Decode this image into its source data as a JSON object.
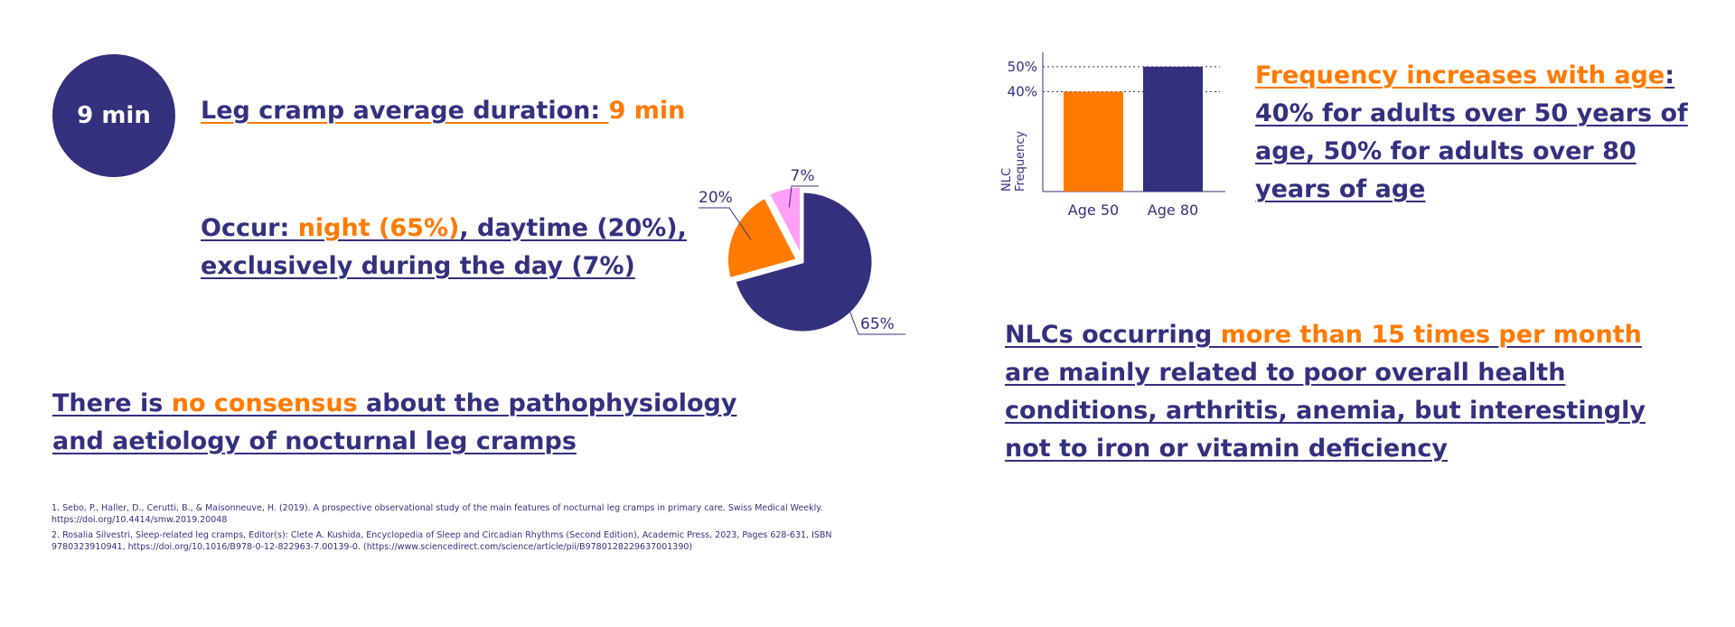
{
  "badge": {
    "text": "9 min"
  },
  "duration": {
    "label": "Leg cramp average duration: ",
    "value": "9 min"
  },
  "occurrence": {
    "prefix": "Occur: ",
    "night": "night (65%)",
    "rest": ", daytime (20%), exclusively during the day (7%)"
  },
  "consensus": {
    "part1": "There is ",
    "highlight": "no consensus",
    "part2": " about the pathophysiology and aetiology of nocturnal leg cramps"
  },
  "frequency": {
    "highlight": "Frequency increases with age",
    "rest": ": 40% for adults over 50 years of age, 50% for adults over 80 years of age"
  },
  "nlc": {
    "part1": "NLCs occurring ",
    "highlight": "more than 15 times per month",
    "part2": " are mainly related to poor overall health conditions, arthritis, anemia, but interestingly not to iron or vitamin deficiency"
  },
  "references": [
    "1. Sebo, P., Haller, D., Cerutti, B., & Maisonneuve, H. (2019). A prospective observational study of the main features of nocturnal leg cramps in primary care. Swiss Medical Weekly. https://doi.org/10.4414/smw.2019.20048",
    "2. Rosalia Silvestri, Sleep-related leg cramps, Editor(s): Clete A. Kushida, Encyclopedia of Sleep and Circadian Rhythms (Second Edition), Academic Press, 2023, Pages 628-631, ISBN 9780323910941, https://doi.org/10.1016/B978-0-12-822963-7.00139-0. (https://www.sciencedirect.com/science/article/pii/B9780128229637001390)"
  ],
  "colors": {
    "navy": "#34307e",
    "orange": "#ff7a00",
    "pink": "#ff9ff5"
  },
  "chart_data": [
    {
      "type": "pie",
      "slices": [
        {
          "label": "65%",
          "value": 65,
          "color": "#34307e"
        },
        {
          "label": "20%",
          "value": 20,
          "color": "#ff7a00"
        },
        {
          "label": "7%",
          "value": 7,
          "color": "#ff9ff5"
        }
      ]
    },
    {
      "type": "bar",
      "categories": [
        "Age 50",
        "Age 80"
      ],
      "values": [
        40,
        50
      ],
      "colors": [
        "#ff7a00",
        "#34307e"
      ],
      "ylabel": "NLC Frequency",
      "ytick_labels": [
        "40%",
        "50%"
      ],
      "ytick_values": [
        40,
        50
      ],
      "ylim": [
        0,
        55
      ],
      "grid": "dotted reference lines at ticks"
    }
  ]
}
